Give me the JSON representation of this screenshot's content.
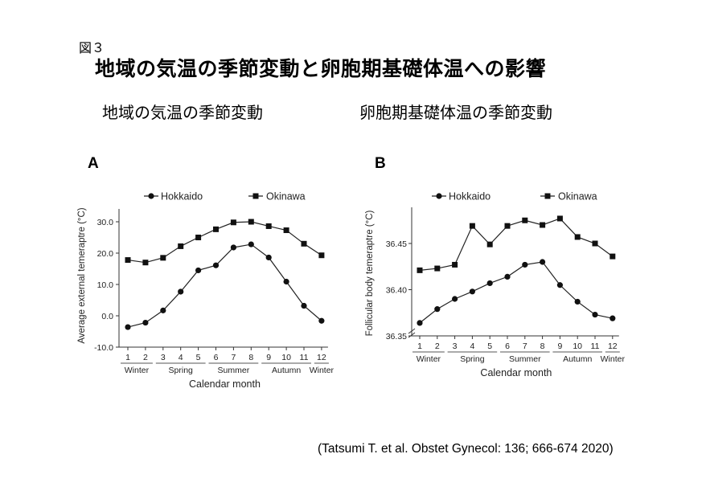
{
  "slide": {
    "figure_label": "図３",
    "title": "地域の気温の季節変動と卵胞期基礎体温への影響",
    "subtitle_left": "地域の気温の季節変動",
    "subtitle_right": "卵胞期基礎体温の季節変動",
    "citation": "(Tatsumi T. et al. Obstet Gynecol: 136; 666-674 2020)"
  },
  "chart_data": [
    {
      "panel": "A",
      "type": "line",
      "x": [
        1,
        2,
        3,
        4,
        5,
        6,
        7,
        8,
        9,
        10,
        11,
        12
      ],
      "tick_labels": [
        "1",
        "2",
        "3",
        "4",
        "5",
        "6",
        "7",
        "8",
        "9",
        "10",
        "11",
        "12"
      ],
      "season_labels": [
        "Winter",
        "Spring",
        "Summer",
        "Autumn",
        "Winter"
      ],
      "season_months": [
        [
          1,
          2
        ],
        [
          3,
          5
        ],
        [
          6,
          8
        ],
        [
          9,
          11
        ],
        [
          12,
          12
        ]
      ],
      "xlabel": "Calendar month",
      "ylabel": "Average external temeraptre (°C)",
      "ylim": [
        -10,
        30
      ],
      "yticks": [
        -10,
        0,
        10,
        20,
        30
      ],
      "ytick_labels": [
        "-10.0",
        "0.0",
        "10.0",
        "20.0",
        "30.0"
      ],
      "legend_position": "top",
      "grid": false,
      "series": [
        {
          "name": "Hokkaido",
          "marker": "circle",
          "values": [
            -3.6,
            -2.2,
            1.7,
            7.7,
            14.5,
            16.1,
            21.8,
            22.8,
            18.6,
            10.9,
            3.2,
            -1.6
          ]
        },
        {
          "name": "Okinawa",
          "marker": "square",
          "values": [
            17.8,
            17.0,
            18.5,
            22.2,
            25.0,
            27.6,
            29.8,
            30.0,
            28.6,
            27.3,
            23.0,
            19.3
          ]
        }
      ]
    },
    {
      "panel": "B",
      "type": "line",
      "x": [
        1,
        2,
        3,
        4,
        5,
        6,
        7,
        8,
        9,
        10,
        11,
        12
      ],
      "tick_labels": [
        "1",
        "2",
        "3",
        "4",
        "5",
        "6",
        "7",
        "8",
        "9",
        "10",
        "11",
        "12"
      ],
      "season_labels": [
        "Winter",
        "Spring",
        "Summer",
        "Autumn",
        "Winter"
      ],
      "season_months": [
        [
          1,
          2
        ],
        [
          3,
          5
        ],
        [
          6,
          8
        ],
        [
          9,
          11
        ],
        [
          12,
          12
        ]
      ],
      "xlabel": "Calendar month",
      "ylabel": "Follicular body temeraptre (°C)",
      "ylim": [
        36.35,
        36.5
      ],
      "yticks": [
        36.35,
        36.4,
        36.45
      ],
      "ytick_labels": [
        "36.35",
        "36.40",
        "36.45"
      ],
      "axis_break": true,
      "legend_position": "top",
      "grid": false,
      "series": [
        {
          "name": "Hokkaido",
          "marker": "circle",
          "values": [
            36.364,
            36.379,
            36.39,
            36.398,
            36.407,
            36.414,
            36.427,
            36.43,
            36.405,
            36.387,
            36.373,
            36.369
          ]
        },
        {
          "name": "Okinawa",
          "marker": "square",
          "values": [
            36.421,
            36.423,
            36.427,
            36.469,
            36.449,
            36.469,
            36.475,
            36.47,
            36.477,
            36.457,
            36.45,
            36.436
          ]
        }
      ]
    }
  ]
}
